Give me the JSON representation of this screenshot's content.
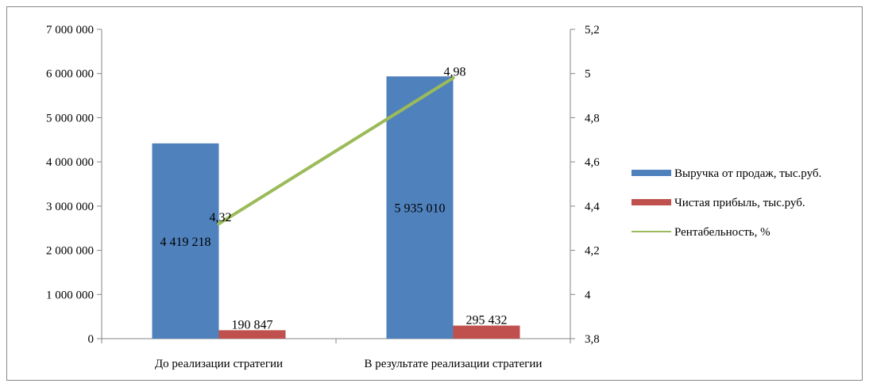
{
  "chart_data": {
    "type": "bar",
    "categories": [
      "До реализации стратегии",
      "В результате реализации стратегии"
    ],
    "series": [
      {
        "name": "Выручка от продаж, тыс.руб.",
        "type": "bar",
        "axis": "left",
        "color": "#4F81BD",
        "values": [
          4419218,
          5935010
        ],
        "labels": [
          "4 419 218",
          "5 935 010"
        ]
      },
      {
        "name": "Чистая прибыль, тыс.руб.",
        "type": "bar",
        "axis": "left",
        "color": "#C0504D",
        "values": [
          190847,
          295432
        ],
        "labels": [
          "190 847",
          "295 432"
        ]
      },
      {
        "name": "Рентабельность, %",
        "type": "line",
        "axis": "right",
        "color": "#9BBB59",
        "values": [
          4.32,
          4.98
        ],
        "labels": [
          "4,32",
          "4,98"
        ]
      }
    ],
    "y_left": {
      "min": 0,
      "max": 7000000,
      "ticks": [
        0,
        1000000,
        2000000,
        3000000,
        4000000,
        5000000,
        6000000,
        7000000
      ],
      "tick_labels": [
        "0",
        "1 000 000",
        "2 000 000",
        "3 000 000",
        "4 000 000",
        "5 000 000",
        "6 000 000",
        "7 000 000"
      ]
    },
    "y_right": {
      "min": 3.8,
      "max": 5.2,
      "ticks": [
        3.8,
        4,
        4.2,
        4.4,
        4.6,
        4.8,
        5,
        5.2
      ],
      "tick_labels": [
        "3,8",
        "4",
        "4,2",
        "4,4",
        "4,6",
        "4,8",
        "5",
        "5,2"
      ]
    },
    "grid": false,
    "legend_position": "right"
  }
}
